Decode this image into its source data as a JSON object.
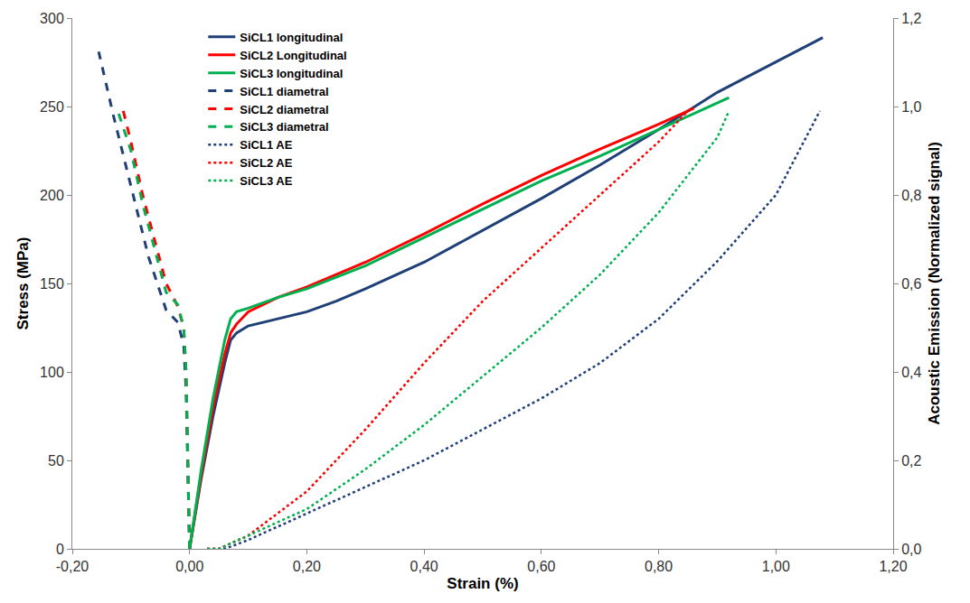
{
  "chart_data": {
    "type": "line",
    "x_label": "Strain (%)",
    "y_label": "Stress (MPa)",
    "y2_label": "Acoustic Emission (Normalized signal)",
    "xlim": [
      -0.2,
      1.2
    ],
    "xticks": [
      {
        "value": -0.2,
        "label": "-0,20"
      },
      {
        "value": 0,
        "label": "0,00"
      },
      {
        "value": 0.2,
        "label": "0,20"
      },
      {
        "value": 0.4,
        "label": "0,40"
      },
      {
        "value": 0.6,
        "label": "0,60"
      },
      {
        "value": 0.8,
        "label": "0,80"
      },
      {
        "value": 1.0,
        "label": "1,00"
      },
      {
        "value": 1.2,
        "label": "1,20"
      }
    ],
    "ylim": [
      0,
      300
    ],
    "yticks": [
      0,
      50,
      100,
      150,
      200,
      250,
      300
    ],
    "y2lim": [
      0,
      1.2
    ],
    "y2ticks": [
      {
        "value": 0,
        "label": "0,0"
      },
      {
        "value": 0.2,
        "label": "0,2"
      },
      {
        "value": 0.4,
        "label": "0,4"
      },
      {
        "value": 0.6,
        "label": "0,6"
      },
      {
        "value": 0.8,
        "label": "0,8"
      },
      {
        "value": 1.0,
        "label": "1,0"
      },
      {
        "value": 1.2,
        "label": "1,2"
      }
    ],
    "grid": false,
    "legend": "upper left",
    "series": [
      {
        "name": "SiCL1 longitudinal",
        "color": "#1f3f77",
        "line_style": "solid",
        "x": [
          0,
          0.02,
          0.04,
          0.06,
          0.07,
          0.08,
          0.1,
          0.15,
          0.2,
          0.25,
          0.3,
          0.4,
          0.5,
          0.6,
          0.7,
          0.8,
          0.9,
          1.0,
          1.08
        ],
        "values": [
          0,
          40,
          75,
          105,
          118,
          122,
          126,
          130,
          134,
          140,
          147,
          162,
          180,
          198,
          217,
          237,
          258,
          275,
          289
        ]
      },
      {
        "name": "SiCL2 Longitudinal",
        "color": "#ff0000",
        "line_style": "solid",
        "x": [
          0,
          0.02,
          0.04,
          0.06,
          0.07,
          0.08,
          0.1,
          0.15,
          0.2,
          0.3,
          0.4,
          0.5,
          0.6,
          0.7,
          0.8,
          0.86
        ],
        "values": [
          0,
          42,
          80,
          110,
          122,
          127,
          134,
          142,
          148,
          162,
          178,
          195,
          211,
          226,
          240,
          249
        ]
      },
      {
        "name": "SiCL3 longitudinal",
        "color": "#00b050",
        "line_style": "solid",
        "x": [
          0,
          0.02,
          0.04,
          0.06,
          0.07,
          0.08,
          0.1,
          0.15,
          0.2,
          0.3,
          0.4,
          0.5,
          0.6,
          0.7,
          0.8,
          0.88,
          0.92
        ],
        "values": [
          0,
          45,
          85,
          118,
          130,
          134,
          136,
          142,
          147,
          160,
          176,
          192,
          208,
          222,
          237,
          249,
          255
        ]
      },
      {
        "name": "SiCL1 diametral",
        "color": "#1f3f77",
        "line_style": "dash",
        "x": [
          0,
          -0.003,
          -0.006,
          -0.01,
          -0.02,
          -0.04,
          -0.07,
          -0.1,
          -0.13,
          -0.155
        ],
        "values": [
          0,
          40,
          90,
          115,
          128,
          135,
          165,
          205,
          245,
          281
        ]
      },
      {
        "name": "SiCL2 diametral",
        "color": "#ff0000",
        "line_style": "dash",
        "x": [
          0,
          -0.003,
          -0.006,
          -0.01,
          -0.02,
          -0.04,
          -0.06,
          -0.08,
          -0.1,
          -0.115
        ],
        "values": [
          0,
          45,
          100,
          125,
          137,
          150,
          175,
          200,
          230,
          250
        ]
      },
      {
        "name": "SiCL3 diametral",
        "color": "#00b050",
        "line_style": "dash",
        "x": [
          0,
          -0.003,
          -0.006,
          -0.01,
          -0.02,
          -0.04,
          -0.06,
          -0.08,
          -0.1,
          -0.125
        ],
        "values": [
          0,
          45,
          100,
          125,
          138,
          145,
          170,
          195,
          225,
          250
        ]
      },
      {
        "name": "SiCL1 AE",
        "color": "#1f3f77",
        "line_style": "dot",
        "axis": "y2",
        "x": [
          0.03,
          0.06,
          0.1,
          0.2,
          0.3,
          0.4,
          0.5,
          0.6,
          0.7,
          0.8,
          0.9,
          1.0,
          1.075
        ],
        "values": [
          0,
          0,
          0.02,
          0.08,
          0.14,
          0.2,
          0.27,
          0.34,
          0.42,
          0.52,
          0.65,
          0.8,
          0.99
        ]
      },
      {
        "name": "SiCL2 AE",
        "color": "#ff0000",
        "line_style": "dot",
        "axis": "y2",
        "x": [
          0.03,
          0.05,
          0.1,
          0.2,
          0.3,
          0.4,
          0.5,
          0.6,
          0.7,
          0.8,
          0.85
        ],
        "values": [
          0,
          0,
          0.03,
          0.13,
          0.27,
          0.42,
          0.56,
          0.68,
          0.8,
          0.92,
          0.99
        ]
      },
      {
        "name": "SiCL3 AE",
        "color": "#00b050",
        "line_style": "dot",
        "axis": "y2",
        "x": [
          0.03,
          0.05,
          0.1,
          0.2,
          0.3,
          0.4,
          0.5,
          0.6,
          0.7,
          0.8,
          0.9,
          0.92
        ],
        "values": [
          0,
          0,
          0.03,
          0.09,
          0.18,
          0.28,
          0.39,
          0.5,
          0.62,
          0.76,
          0.93,
          0.99
        ]
      }
    ]
  }
}
